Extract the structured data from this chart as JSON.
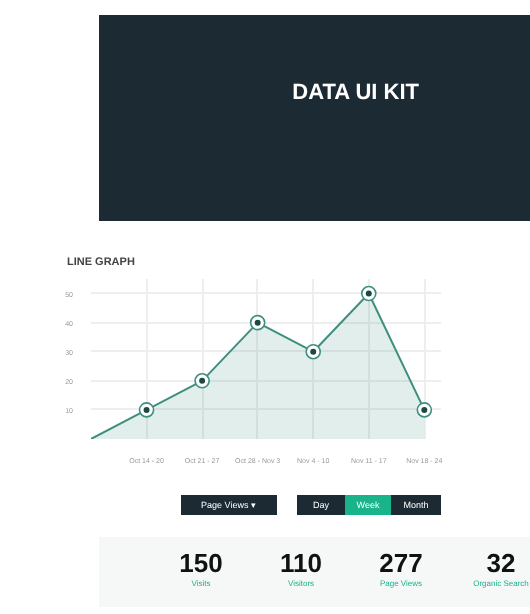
{
  "chart_data": [
    {
      "type": "other",
      "title": "DATA UI KIT"
    },
    {
      "type": "area",
      "title": "LINE GRAPH",
      "categories": [
        null,
        "Oct 14 - 20",
        "Oct 21 - 27",
        "Oct 28 - Nov 3",
        "Nov 4 - 10",
        "Nov 11 - 17",
        "Nov 18 - 24"
      ],
      "series": [
        {
          "color": "#3f8f80",
          "values": [
            0,
            10,
            20,
            40,
            30,
            50,
            10
          ]
        }
      ],
      "ylim": [
        0,
        55
      ],
      "yticks": [
        10,
        20,
        30,
        40,
        50
      ],
      "grid": true,
      "marker": "circle",
      "line_style": "solid"
    },
    {
      "type": "other",
      "annotations": [
        "Page Views ▾",
        "Day",
        "Week",
        "Month",
        "150",
        "Visits",
        "110",
        "Visitors",
        "277",
        "Page Views",
        "32",
        "Organic Search"
      ]
    }
  ]
}
